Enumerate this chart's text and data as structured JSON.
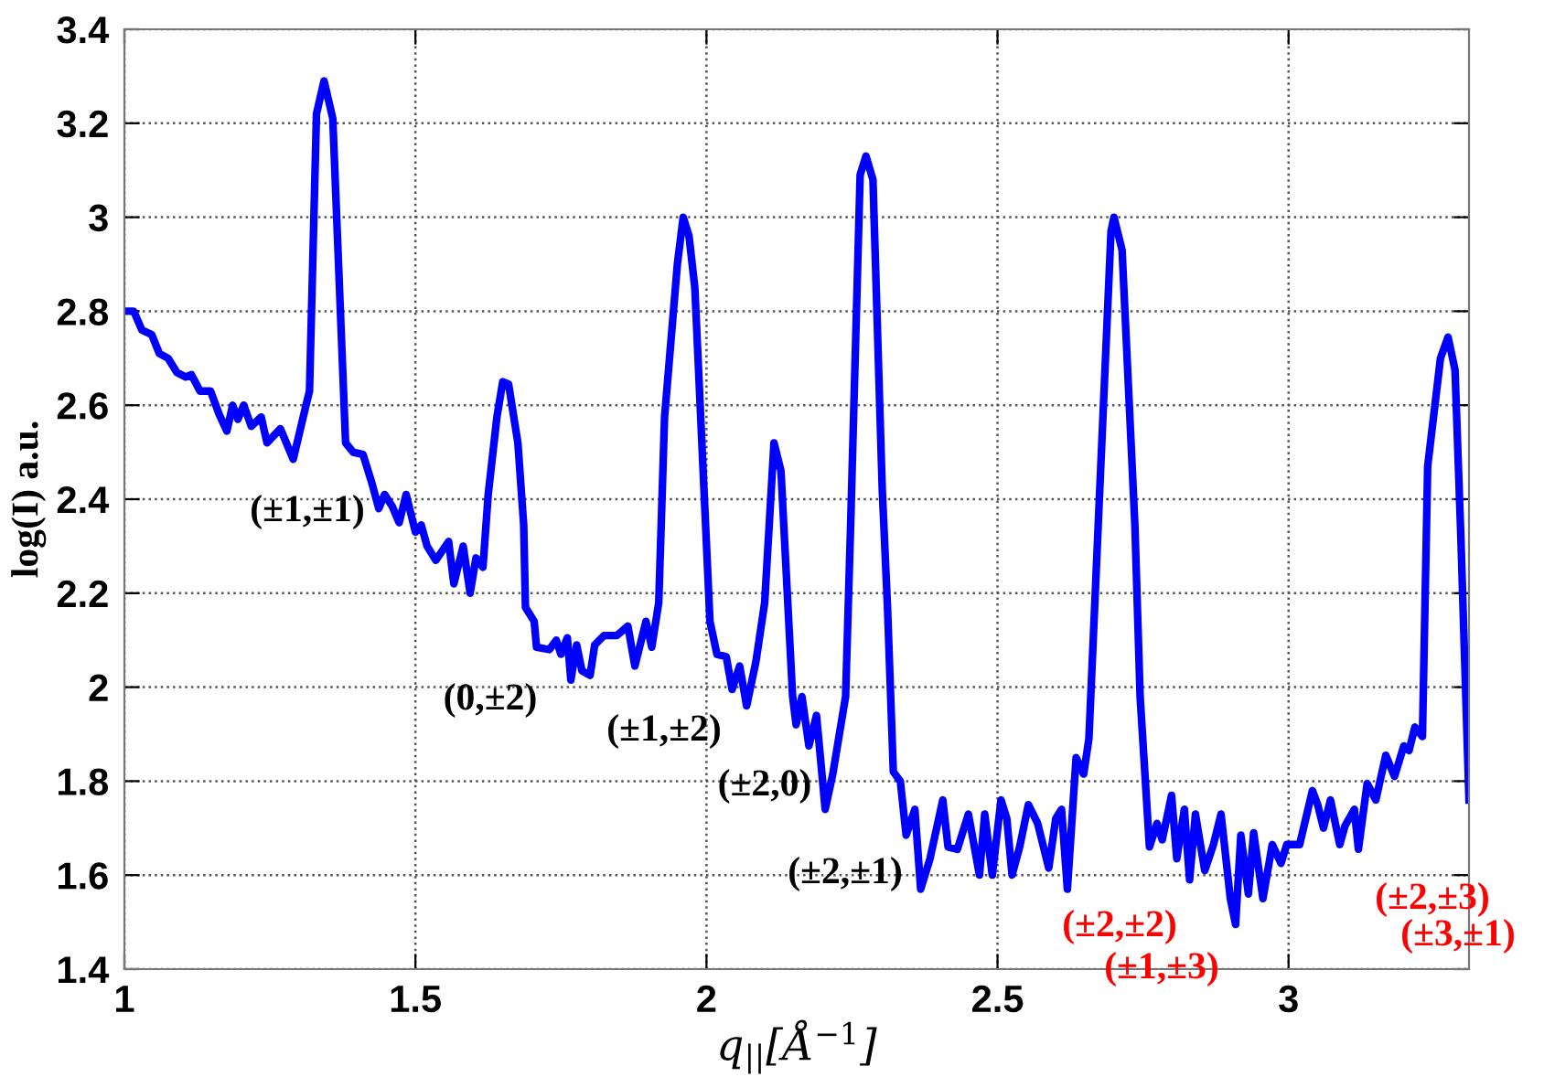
{
  "chart_data": {
    "type": "line",
    "xlabel": "q$_{||}$[Å$^{−1}$]",
    "ylabel": "log(I) a.u.",
    "xlim": [
      1,
      3.31
    ],
    "ylim": [
      1.4,
      3.4
    ],
    "xticks": [
      1,
      1.5,
      2,
      2.5,
      3
    ],
    "yticks": [
      1.4,
      1.6,
      1.8,
      2,
      2.2,
      2.4,
      2.6,
      2.8,
      3,
      3.2,
      3.4
    ],
    "grid": true,
    "line_style": "solid",
    "marker": "none",
    "series": [
      {
        "color": "#0000ff",
        "x": [
          1,
          1.016,
          1.03,
          1.047,
          1.06,
          1.075,
          1.09,
          1.105,
          1.115,
          1.13,
          1.148,
          1.163,
          1.176,
          1.186,
          1.195,
          1.205,
          1.218,
          1.235,
          1.245,
          1.268,
          1.29,
          1.312,
          1.318,
          1.33,
          1.343,
          1.358,
          1.38,
          1.393,
          1.41,
          1.425,
          1.437,
          1.447,
          1.46,
          1.472,
          1.484,
          1.5,
          1.51,
          1.52,
          1.535,
          1.557,
          1.566,
          1.582,
          1.594,
          1.604,
          1.616,
          1.625,
          1.64,
          1.65,
          1.66,
          1.676,
          1.686,
          1.689,
          1.704,
          1.708,
          1.73,
          1.742,
          1.75,
          1.761,
          1.767,
          1.777,
          1.786,
          1.8,
          1.808,
          1.824,
          1.846,
          1.865,
          1.877,
          1.896,
          1.906,
          1.918,
          1.928,
          1.95,
          1.96,
          1.97,
          1.98,
          1.997,
          2.006,
          2.018,
          2.034,
          2.044,
          2.057,
          2.069,
          2.085,
          2.1,
          2.116,
          2.128,
          2.148,
          2.154,
          2.164,
          2.176,
          2.189,
          2.204,
          2.217,
          2.239,
          2.248,
          2.264,
          2.274,
          2.286,
          2.302,
          2.311,
          2.321,
          2.333,
          2.343,
          2.358,
          2.368,
          2.384,
          2.406,
          2.415,
          2.431,
          2.45,
          2.469,
          2.478,
          2.491,
          2.506,
          2.516,
          2.525,
          2.538,
          2.553,
          2.569,
          2.588,
          2.6,
          2.61,
          2.62,
          2.635,
          2.648,
          2.657,
          2.673,
          2.695,
          2.7,
          2.714,
          2.736,
          2.745,
          2.761,
          2.774,
          2.783,
          2.799,
          2.808,
          2.821,
          2.83,
          2.84,
          2.856,
          2.871,
          2.884,
          2.9,
          2.909,
          2.918,
          2.931,
          2.94,
          2.956,
          2.972,
          2.987,
          2.997,
          3.019,
          3.041,
          3.05,
          3.06,
          3.072,
          3.088,
          3.097,
          3.113,
          3.12,
          3.135,
          3.15,
          3.167,
          3.182,
          3.198,
          3.207,
          3.217,
          3.23,
          3.239,
          3.261,
          3.274,
          3.286,
          3.296,
          3.31
        ],
        "values": [
          2.8,
          2.8,
          2.76,
          2.75,
          2.71,
          2.7,
          2.67,
          2.66,
          2.665,
          2.63,
          2.63,
          2.58,
          2.545,
          2.6,
          2.57,
          2.6,
          2.555,
          2.575,
          2.52,
          2.55,
          2.485,
          2.6,
          2.63,
          3.22,
          3.29,
          3.21,
          2.52,
          2.5,
          2.495,
          2.435,
          2.38,
          2.41,
          2.385,
          2.35,
          2.41,
          2.33,
          2.345,
          2.3,
          2.27,
          2.31,
          2.22,
          2.3,
          2.2,
          2.275,
          2.255,
          2.41,
          2.575,
          2.65,
          2.645,
          2.52,
          2.345,
          2.17,
          2.14,
          2.085,
          2.08,
          2.1,
          2.07,
          2.105,
          2.015,
          2.09,
          2.035,
          2.025,
          2.09,
          2.11,
          2.11,
          2.13,
          2.045,
          2.14,
          2.085,
          2.18,
          2.575,
          2.9,
          3.0,
          2.96,
          2.85,
          2.385,
          2.14,
          2.07,
          2.065,
          1.995,
          2.045,
          1.96,
          2.055,
          2.18,
          2.52,
          2.46,
          1.98,
          1.92,
          1.98,
          1.875,
          1.94,
          1.74,
          1.815,
          1.98,
          2.36,
          3.09,
          3.13,
          3.08,
          2.42,
          2.17,
          1.82,
          1.8,
          1.685,
          1.74,
          1.57,
          1.635,
          1.76,
          1.66,
          1.655,
          1.73,
          1.6,
          1.73,
          1.6,
          1.76,
          1.72,
          1.6,
          1.66,
          1.75,
          1.71,
          1.615,
          1.72,
          1.74,
          1.57,
          1.85,
          1.815,
          1.89,
          2.345,
          2.97,
          3.0,
          2.93,
          2.345,
          1.98,
          1.66,
          1.71,
          1.675,
          1.77,
          1.635,
          1.74,
          1.59,
          1.73,
          1.61,
          1.665,
          1.73,
          1.55,
          1.495,
          1.685,
          1.56,
          1.69,
          1.55,
          1.665,
          1.625,
          1.665,
          1.665,
          1.78,
          1.75,
          1.7,
          1.76,
          1.665,
          1.705,
          1.74,
          1.655,
          1.795,
          1.76,
          1.855,
          1.81,
          1.875,
          1.865,
          1.915,
          1.895,
          2.47,
          2.7,
          2.745,
          2.675,
          2.32,
          1.76
        ]
      }
    ],
    "annotations": [
      "(±1,±1)",
      "(0,±2)",
      "(±1,±2)",
      "(±2,0)",
      "(±2,±1)",
      "(±2,±2)",
      "(±1,±3)",
      "(±2,±3)",
      "(±3,±1)"
    ]
  }
}
